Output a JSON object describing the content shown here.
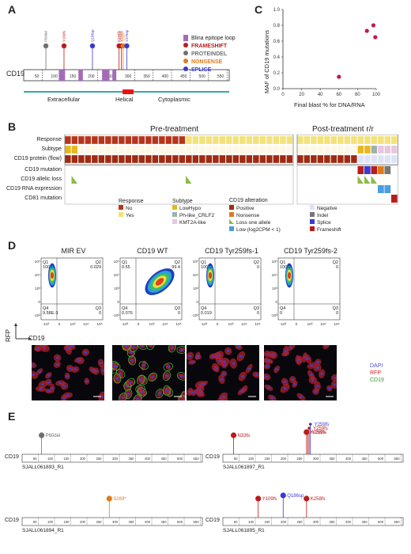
{
  "panels": {
    "a": "A",
    "b": "B",
    "c": "C",
    "d": "D",
    "e": "E"
  },
  "panel_a": {
    "gene": "CD19",
    "ticks": [
      "50",
      "100",
      "150",
      "200",
      "250",
      "300",
      "350",
      "400",
      "450",
      "500",
      "550"
    ],
    "domains": {
      "extracellular": "Extracellular",
      "helical": "Helical",
      "cytoplasmic": "Cytoplasmic"
    },
    "legend": {
      "epitope": "Blina epitope loop",
      "frameshift": "FRAMESHIFT",
      "proteindel": "PROTEINDEL",
      "nonsense": "NONSENSE",
      "splice": "SPLICE"
    },
    "lollipops": [
      {
        "label": "P60del",
        "pos": 60,
        "type": "proteindel"
      },
      {
        "label": "Y109fs",
        "pos": 109,
        "type": "frameshift"
      },
      {
        "label": "Q186sp",
        "pos": 186,
        "type": "splice"
      },
      {
        "label": "K258fs",
        "pos": 258,
        "type": "frameshift"
      },
      {
        "label": "Y259fs",
        "pos": 264,
        "type": "frameshift"
      },
      {
        "label": "S269*",
        "pos": 269,
        "type": "nonsense"
      },
      {
        "label": "Y279sp",
        "pos": 279,
        "type": "splice"
      }
    ],
    "colors": {
      "frameshift": "#b91c1c",
      "proteindel": "#707070",
      "nonsense": "#e07b1a",
      "splice": "#3a3ad0",
      "epitope": "#a46bb8"
    }
  },
  "chart_data": {
    "type": "scatter",
    "title": "",
    "xlabel": "Final blast % for DNA/RNA",
    "ylabel": "MAF of CD19 mutations",
    "xlim": [
      0,
      100
    ],
    "ylim": [
      0,
      1.0
    ],
    "xticks": [
      "0",
      "20",
      "40",
      "60",
      "80",
      "100"
    ],
    "yticks": [
      "0.0",
      "0.2",
      "0.4",
      "0.6",
      "0.8",
      "1.0"
    ],
    "x": [
      60,
      90,
      97,
      99
    ],
    "y": [
      0.15,
      0.73,
      0.8,
      0.65
    ],
    "color": "#c0185a"
  },
  "panel_b": {
    "pre_title": "Pre-treatment",
    "post_title": "Post-treatment r/r",
    "rows": [
      "Response",
      "Subtype",
      "CD19 protein (flow)",
      "CD19 mutation",
      "CD19 allelic loss",
      "CD19 RNA expression",
      "CD81 mutation"
    ],
    "legend": {
      "response_title": "Response",
      "subtype_title": "Subtype",
      "alteration_title": "CD19 alteration",
      "no": "No",
      "yes": "Yes",
      "lowhypo": "LowHypo",
      "phlike": "Ph-like_CRLF2",
      "kmt2a": "KMT2A-like",
      "positive": "Positive",
      "nonsense": "Nonsense",
      "lossone": "Loss one allele",
      "low": "Low (log2CPM < 1)",
      "negative": "Negative",
      "indel": "Indel",
      "splice": "Splice",
      "frameshift": "Frameshift"
    }
  },
  "panel_d": {
    "titles": [
      "MIR EV",
      "CD19 WT",
      "CD19 Tyr259fs-1",
      "CD19 Tyr259fs-2"
    ],
    "quadrants": [
      {
        "q1": "100.0",
        "q2": "0.029",
        "q4": "9.58E-3",
        "q3": "0"
      },
      {
        "q1": "0.55",
        "q2": "99.4",
        "q4": "0.076",
        "q3": "0"
      },
      {
        "q1": "100.0",
        "q2": "0",
        "q4": "0.019",
        "q3": "0"
      },
      {
        "q1": "100.0",
        "q2": "0",
        "q4": "0",
        "q3": "0"
      }
    ],
    "qnames": {
      "q1": "Q1",
      "q2": "Q2",
      "q3": "Q3",
      "q4": "Q4"
    },
    "yticks": [
      "10⁵",
      "10⁴",
      "10³",
      "0",
      "-10³"
    ],
    "xticks": [
      "-10³",
      "0",
      "10³",
      "10⁴",
      "10⁵"
    ],
    "ylabel": "RFP",
    "xlabel": "CD19",
    "stain": {
      "dapi": "DAPI",
      "rfp": "RFP",
      "cd19": "CD19"
    }
  },
  "panel_e": {
    "gene": "CD19",
    "ticks": [
      "50",
      "100",
      "150",
      "200",
      "250",
      "300",
      "350",
      "400",
      "450",
      "500",
      "550"
    ],
    "samples": [
      {
        "id": "SJALL061893_R1",
        "muts": [
          {
            "label": "P60del",
            "pos": 60,
            "type": "proteindel",
            "big": true
          }
        ]
      },
      {
        "id": "SJALL061897_R1",
        "muts": [
          {
            "label": "N33fs",
            "pos": 33,
            "type": "frameshift",
            "big": true
          },
          {
            "label": "K258fs",
            "pos": 258,
            "type": "frameshift",
            "big": true
          },
          {
            "label": "Y259fs",
            "pos": 262,
            "type": "frameshift"
          },
          {
            "label": "Y259fs",
            "pos": 266,
            "type": "frameshift"
          },
          {
            "label": "Y259fs",
            "pos": 270,
            "type": "splice"
          }
        ]
      },
      {
        "id": "SJALL061894_R1",
        "muts": [
          {
            "label": "S269*",
            "pos": 269,
            "type": "nonsense",
            "big": true
          }
        ]
      },
      {
        "id": "SJALL061895_R1",
        "muts": [
          {
            "label": "Y109fs",
            "pos": 109,
            "type": "frameshift",
            "big": true
          },
          {
            "label": "Q186sp",
            "pos": 186,
            "type": "splice",
            "big": true
          },
          {
            "label": "K258fs",
            "pos": 258,
            "type": "frameshift",
            "big": true
          }
        ]
      }
    ]
  }
}
